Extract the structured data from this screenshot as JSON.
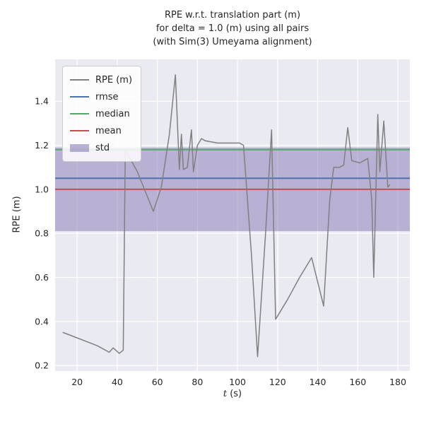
{
  "title": {
    "line1": "RPE w.r.t. translation part (m)",
    "line2": "for delta = 1.0 (m) using all pairs",
    "line3": "(with Sim(3) Umeyama alignment)"
  },
  "xlabel_italic": "t",
  "xlabel_rest": " (s)",
  "ylabel": "RPE (m)",
  "legend": [
    {
      "label": "RPE (m)",
      "color": "#808080",
      "type": "line"
    },
    {
      "label": "rmse",
      "color": "#4c72b0",
      "type": "line"
    },
    {
      "label": "median",
      "color": "#55a868",
      "type": "line"
    },
    {
      "label": "mean",
      "color": "#c44e52",
      "type": "line"
    },
    {
      "label": "std",
      "color": "#8172b2",
      "type": "band"
    }
  ],
  "colors": {
    "axes_background": "#eaeaf2",
    "grid": "#ffffff",
    "rpe_line": "#808080",
    "rmse_line": "#4c72b0",
    "median_line": "#55a868",
    "mean_line": "#c44e52",
    "std_band": "#8172b2",
    "text": "#262626"
  },
  "chart_data": {
    "type": "line",
    "title": "RPE w.r.t. translation part (m) for delta = 1.0 (m) using all pairs (with Sim(3) Umeyama alignment)",
    "xlabel": "t (s)",
    "ylabel": "RPE (m)",
    "xlim": [
      9,
      186
    ],
    "ylim": [
      0.175,
      1.59
    ],
    "xticks": [
      20,
      40,
      60,
      80,
      100,
      120,
      140,
      160,
      180
    ],
    "yticks": [
      0.2,
      0.4,
      0.6,
      0.8,
      1.0,
      1.2,
      1.4
    ],
    "grid": true,
    "legend_position": "upper left",
    "stats": {
      "rmse": 1.05,
      "median": 1.18,
      "mean": 1.0,
      "std": 0.19,
      "std_band": [
        0.81,
        1.19
      ]
    },
    "series": [
      {
        "name": "RPE (m)",
        "color": "#808080",
        "points": [
          [
            13,
            0.35
          ],
          [
            30,
            0.29
          ],
          [
            36,
            0.26
          ],
          [
            38,
            0.28
          ],
          [
            41,
            0.255
          ],
          [
            43,
            0.27
          ],
          [
            44,
            1.18
          ],
          [
            50,
            1.08
          ],
          [
            58,
            0.9
          ],
          [
            62,
            1.01
          ],
          [
            66,
            1.25
          ],
          [
            69,
            1.52
          ],
          [
            71,
            1.09
          ],
          [
            72,
            1.25
          ],
          [
            73,
            1.09
          ],
          [
            75,
            1.1
          ],
          [
            77,
            1.27
          ],
          [
            78,
            1.08
          ],
          [
            80,
            1.2
          ],
          [
            82,
            1.23
          ],
          [
            84,
            1.22
          ],
          [
            90,
            1.21
          ],
          [
            97,
            1.21
          ],
          [
            101,
            1.21
          ],
          [
            103,
            1.2
          ],
          [
            107,
            0.7
          ],
          [
            110,
            0.24
          ],
          [
            114,
            0.8
          ],
          [
            117,
            1.27
          ],
          [
            119,
            0.41
          ],
          [
            125,
            0.5
          ],
          [
            131,
            0.6
          ],
          [
            137,
            0.69
          ],
          [
            140,
            0.58
          ],
          [
            143,
            0.47
          ],
          [
            146,
            0.95
          ],
          [
            148,
            1.1
          ],
          [
            151,
            1.1
          ],
          [
            153,
            1.11
          ],
          [
            155,
            1.28
          ],
          [
            157,
            1.13
          ],
          [
            161,
            1.12
          ],
          [
            165,
            1.14
          ],
          [
            167,
            0.95
          ],
          [
            168,
            0.6
          ],
          [
            170,
            1.34
          ],
          [
            171,
            1.08
          ],
          [
            173,
            1.31
          ],
          [
            175,
            1.01
          ],
          [
            176,
            1.02
          ]
        ]
      }
    ]
  }
}
